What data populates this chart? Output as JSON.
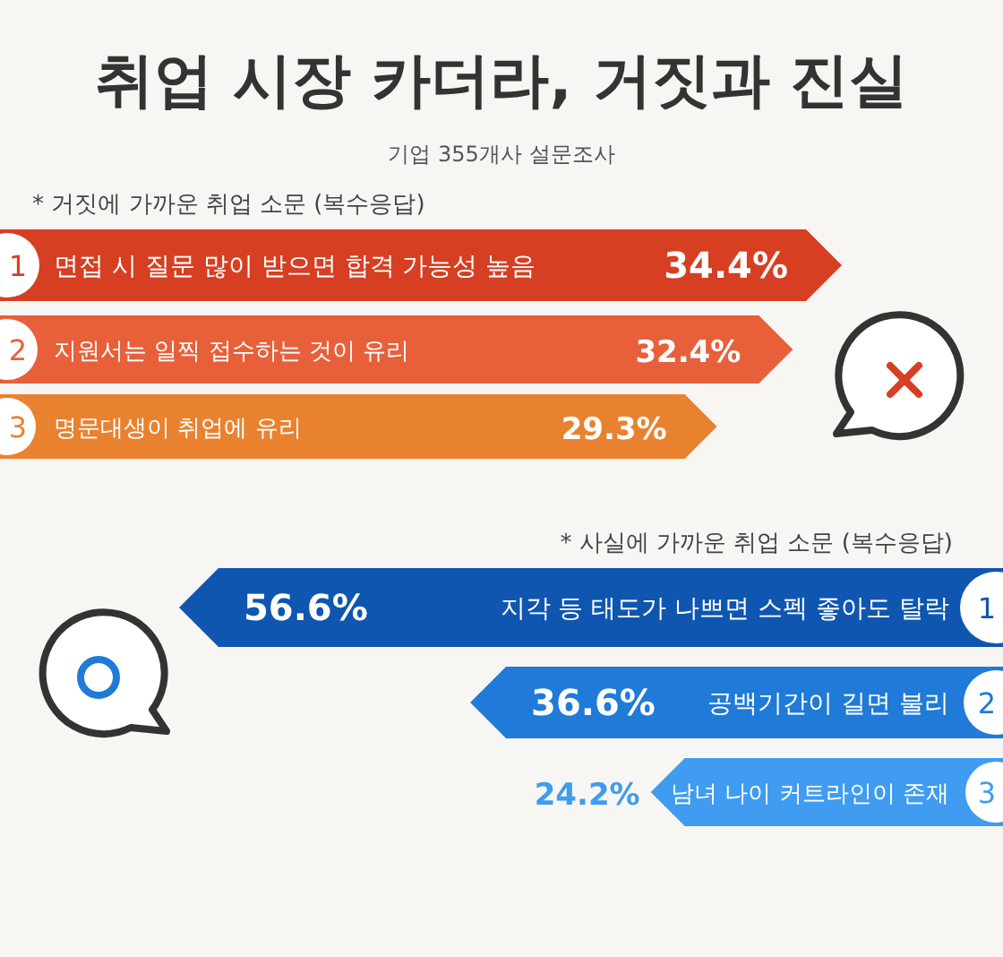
{
  "chart_data": [
    {
      "type": "bar",
      "orientation": "horizontal",
      "title": "취업 시장 카더라, 거짓과 진실",
      "subtitle": "기업 355개사 설문조사",
      "xlabel": "* 거짓에 가까운 취업 소문 (복수응답)",
      "categories": [
        "면접 시 질문 많이 받으면 합격 가능성 높음",
        "지원서는 일찍 접수하는 것이 유리",
        "명문대생이 취업에 유리"
      ],
      "values": [
        34.4,
        32.4,
        29.3
      ],
      "colors": [
        "#d63f22",
        "#e8603a",
        "#e9822f"
      ],
      "value_labels": [
        "34.4%",
        "32.4%",
        "29.3%"
      ],
      "annotations": [
        "1",
        "2",
        "3"
      ]
    },
    {
      "type": "bar",
      "orientation": "horizontal",
      "xlabel": "* 사실에 가까운 취업 소문 (복수응답)",
      "categories": [
        "지각 등 태도가 나쁘면 스펙 좋아도 탈락",
        "공백기간이 길면 불리",
        "남녀  나이 커트라인이 존재"
      ],
      "values": [
        56.6,
        36.6,
        24.2
      ],
      "colors": [
        "#0f56b0",
        "#1f7ad8",
        "#3f9cf0"
      ],
      "value_labels": [
        "56.6%",
        "36.6%",
        "24.2%"
      ],
      "annotations": [
        "1",
        "2",
        "3"
      ]
    }
  ]
}
